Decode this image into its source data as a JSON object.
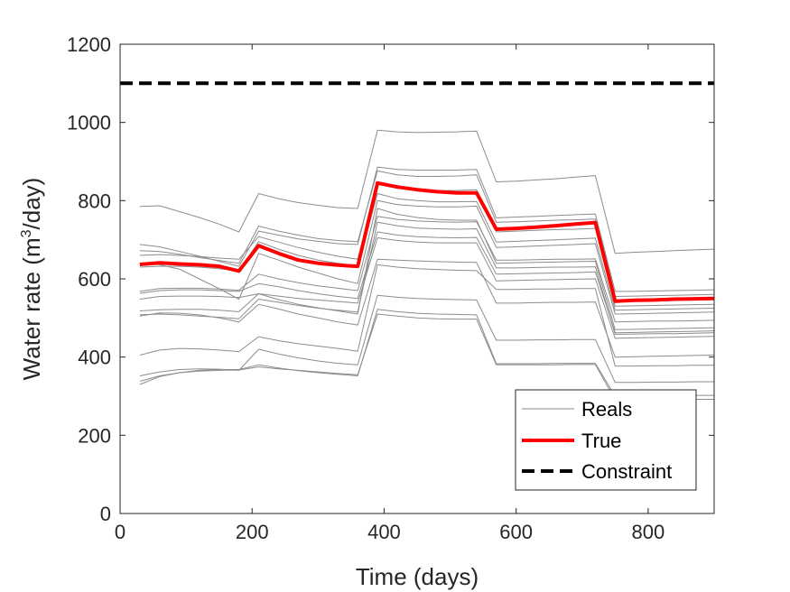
{
  "chart_data": {
    "type": "line",
    "title": "",
    "xlabel": "Time (days)",
    "ylabel_main": "Water rate (m",
    "ylabel_sup": "3",
    "ylabel_tail": "/day)",
    "xlim": [
      0,
      900
    ],
    "ylim": [
      0,
      1200
    ],
    "xticks": [
      0,
      200,
      400,
      600,
      800
    ],
    "yticks": [
      0,
      200,
      400,
      600,
      800,
      1000,
      1200
    ],
    "x": [
      30,
      60,
      90,
      120,
      150,
      180,
      210,
      240,
      270,
      300,
      330,
      360,
      390,
      420,
      450,
      480,
      510,
      540,
      570,
      600,
      630,
      660,
      690,
      720,
      750,
      780,
      810,
      840,
      870,
      900
    ],
    "series": [
      {
        "name": "Reals",
        "role": "realization",
        "values": [
          785,
          787,
          772,
          757,
          740,
          720,
          818,
          805,
          795,
          788,
          782,
          780,
          980,
          976,
          974,
          975,
          976,
          978,
          848,
          850,
          853,
          856,
          860,
          864,
          665,
          668,
          670,
          672,
          674,
          676
        ]
      },
      {
        "name": "Reals",
        "role": "realization",
        "values": [
          688,
          682,
          670,
          658,
          645,
          632,
          722,
          712,
          702,
          696,
          690,
          688,
          886,
          880,
          878,
          878,
          878,
          880,
          756,
          758,
          760,
          762,
          764,
          766,
          568,
          568,
          569,
          570,
          571,
          572
        ]
      },
      {
        "name": "Reals",
        "role": "realization",
        "values": [
          672,
          670,
          663,
          655,
          647,
          640,
          735,
          722,
          712,
          703,
          698,
          695,
          876,
          866,
          862,
          862,
          863,
          866,
          745,
          746,
          748,
          750,
          751,
          753,
          555,
          556,
          557,
          558,
          559,
          560
        ]
      },
      {
        "name": "Reals",
        "role": "realization",
        "values": [
          660,
          662,
          660,
          657,
          653,
          650,
          708,
          694,
          680,
          668,
          658,
          650,
          842,
          832,
          828,
          826,
          826,
          828,
          720,
          722,
          724,
          726,
          727,
          729,
          530,
          531,
          532,
          533,
          534,
          535
        ]
      },
      {
        "name": "Reals",
        "role": "realization",
        "values": [
          640,
          636,
          625,
          600,
          575,
          548,
          665,
          648,
          630,
          615,
          600,
          588,
          800,
          790,
          786,
          784,
          784,
          786,
          680,
          682,
          684,
          686,
          688,
          690,
          510,
          511,
          512,
          513,
          514,
          515
        ]
      },
      {
        "name": "Reals",
        "role": "realization",
        "values": [
          630,
          632,
          632,
          630,
          626,
          620,
          695,
          676,
          660,
          648,
          640,
          633,
          818,
          805,
          800,
          797,
          797,
          798,
          694,
          696,
          698,
          700,
          702,
          704,
          520,
          521,
          522,
          523,
          524,
          525
        ]
      },
      {
        "name": "Reals",
        "role": "realization",
        "values": [
          568,
          575,
          576,
          576,
          574,
          571,
          612,
          600,
          590,
          582,
          576,
          570,
          760,
          752,
          748,
          746,
          745,
          746,
          648,
          648,
          649,
          650,
          650,
          651,
          490,
          491,
          492,
          492,
          493,
          494
        ]
      },
      {
        "name": "Reals",
        "role": "realization",
        "values": [
          563,
          570,
          572,
          572,
          570,
          568,
          588,
          580,
          570,
          562,
          555,
          550,
          720,
          712,
          708,
          706,
          705,
          706,
          612,
          613,
          614,
          615,
          616,
          618,
          462,
          463,
          464,
          465,
          466,
          467
        ]
      },
      {
        "name": "Reals",
        "role": "realization",
        "values": [
          548,
          555,
          556,
          556,
          555,
          552,
          562,
          556,
          550,
          546,
          542,
          538,
          705,
          698,
          694,
          692,
          692,
          692,
          595,
          596,
          597,
          598,
          599,
          600,
          448,
          449,
          450,
          451,
          452,
          453
        ]
      },
      {
        "name": "Reals",
        "role": "realization",
        "values": [
          518,
          521,
          522,
          522,
          520,
          516,
          562,
          547,
          535,
          526,
          518,
          510,
          780,
          765,
          757,
          752,
          750,
          750,
          640,
          641,
          642,
          643,
          644,
          645,
          470,
          471,
          472,
          473,
          474,
          475
        ]
      },
      {
        "name": "Reals",
        "role": "realization",
        "values": [
          508,
          510,
          508,
          505,
          502,
          498,
          548,
          540,
          532,
          525,
          520,
          515,
          745,
          736,
          730,
          728,
          727,
          728,
          628,
          628,
          629,
          630,
          630,
          631,
          458,
          459,
          460,
          460,
          461,
          462
        ]
      },
      {
        "name": "Reals",
        "role": "realization",
        "values": [
          505,
          513,
          512,
          508,
          500,
          490,
          535,
          523,
          510,
          500,
          490,
          482,
          650,
          648,
          646,
          644,
          643,
          642,
          538,
          538,
          539,
          540,
          540,
          541,
          400,
          401,
          402,
          403,
          404,
          405
        ]
      },
      {
        "name": "Reals",
        "role": "realization",
        "values": [
          405,
          418,
          422,
          421,
          418,
          414,
          452,
          442,
          434,
          428,
          422,
          415,
          636,
          630,
          626,
          624,
          622,
          621,
          573,
          573,
          574,
          574,
          575,
          575,
          377,
          377,
          378,
          378,
          379,
          379
        ]
      },
      {
        "name": "Reals",
        "role": "realization",
        "values": [
          352,
          362,
          368,
          370,
          369,
          366,
          420,
          408,
          398,
          390,
          384,
          380,
          558,
          553,
          550,
          548,
          547,
          546,
          443,
          443,
          444,
          444,
          445,
          445,
          335,
          335,
          336,
          336,
          337,
          337
        ]
      },
      {
        "name": "Reals",
        "role": "realization",
        "values": [
          330,
          350,
          360,
          366,
          368,
          368,
          380,
          372,
          365,
          360,
          356,
          352,
          522,
          516,
          512,
          510,
          509,
          508,
          383,
          383,
          383,
          384,
          384,
          384,
          300,
          300,
          301,
          301,
          302,
          302
        ]
      },
      {
        "name": "Reals",
        "role": "realization",
        "values": [
          338,
          352,
          360,
          364,
          366,
          367,
          375,
          370,
          366,
          362,
          358,
          355,
          510,
          505,
          500,
          498,
          497,
          497,
          380,
          380,
          380,
          380,
          381,
          381,
          290,
          290,
          291,
          291,
          292,
          292
        ]
      },
      {
        "name": "True",
        "role": "true",
        "values": [
          637,
          641,
          638,
          636,
          632,
          620,
          685,
          665,
          648,
          640,
          635,
          632,
          845,
          835,
          828,
          823,
          820,
          820,
          727,
          729,
          732,
          736,
          740,
          744,
          543,
          545,
          546,
          548,
          549,
          550
        ]
      },
      {
        "name": "Constraint",
        "role": "constraint",
        "values": [
          1100,
          1100,
          1100,
          1100,
          1100,
          1100,
          1100,
          1100,
          1100,
          1100,
          1100,
          1100,
          1100,
          1100,
          1100,
          1100,
          1100,
          1100,
          1100,
          1100,
          1100,
          1100,
          1100,
          1100,
          1100,
          1100,
          1100,
          1100,
          1100,
          1100
        ]
      }
    ],
    "legend": {
      "position": "bottom-right",
      "entries": [
        "Reals",
        "True",
        "Constraint"
      ]
    },
    "colors": {
      "reals": "#8c8c8c",
      "true": "#ff0000",
      "constraint": "#000000",
      "axis": "#262626"
    }
  }
}
